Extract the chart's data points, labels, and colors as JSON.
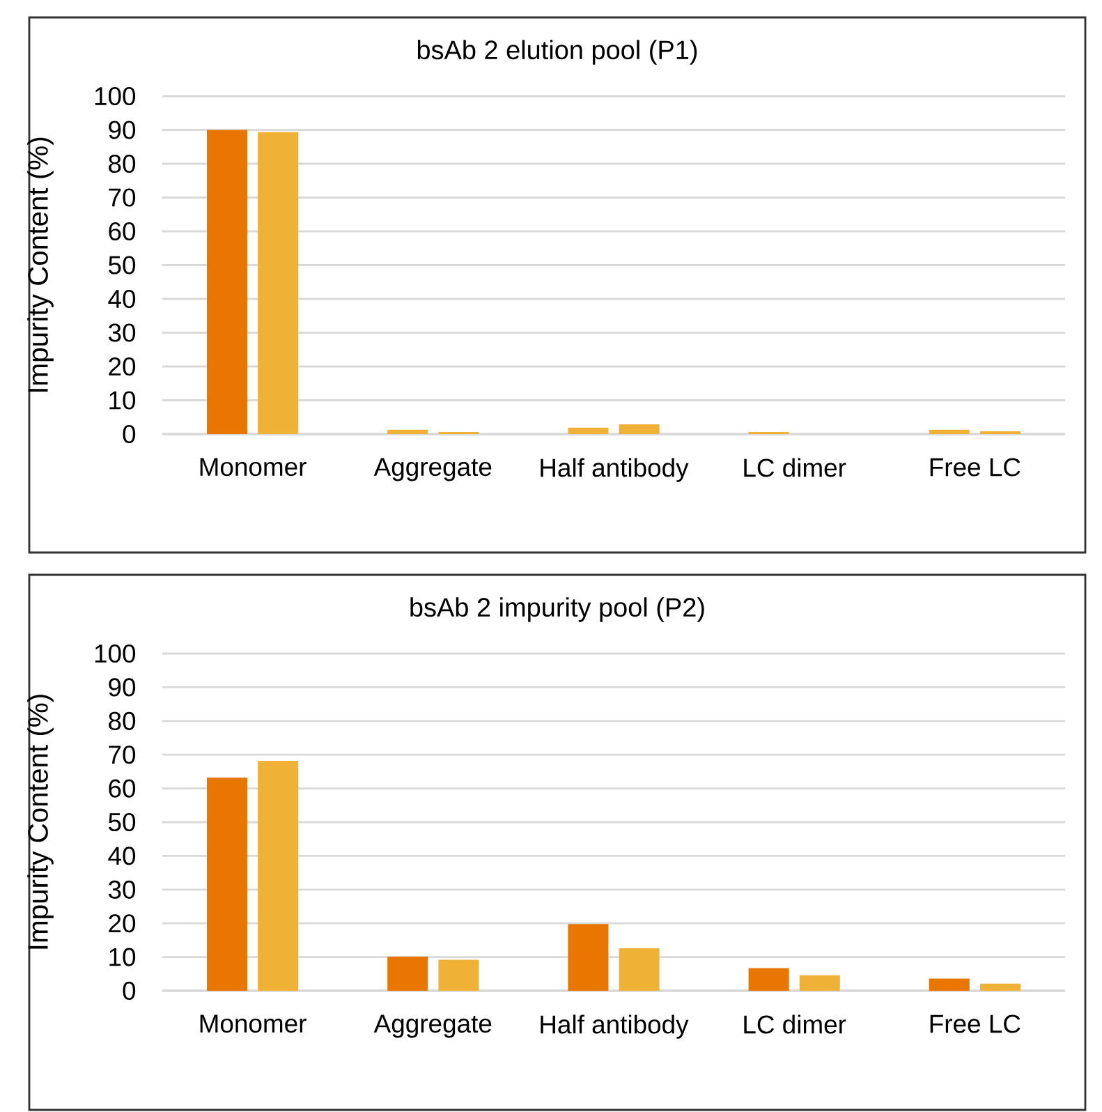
{
  "chart_data": [
    {
      "type": "bar",
      "title": "bsAb 2 elution pool (P1)",
      "ylabel": "Impurity Content (%)",
      "categories": [
        "Monomer",
        "Aggregate",
        "Half antibody",
        "LC dimer",
        "Free LC"
      ],
      "series": [
        {
          "colors": [
            "#e97600",
            "#efb236",
            "#efb236",
            "#efb236",
            "#efb236"
          ],
          "values": [
            90,
            1.3,
            1.9,
            0.6,
            1.3
          ]
        },
        {
          "color": "#efb236",
          "values": [
            89.4,
            0.6,
            2.9,
            0,
            0.8
          ]
        }
      ],
      "ylim": [
        0,
        100
      ],
      "yticks": [
        0,
        10,
        20,
        30,
        40,
        50,
        60,
        70,
        80,
        90,
        100
      ],
      "grid": "y"
    },
    {
      "type": "bar",
      "title": "bsAb 2 impurity pool (P2)",
      "ylabel": "Impurity Content (%)",
      "categories": [
        "Monomer",
        "Aggregate",
        "Half antibody",
        "LC dimer",
        "Free LC"
      ],
      "series": [
        {
          "color": "#e97600",
          "values": [
            63.2,
            10.1,
            19.8,
            6.7,
            3.6
          ]
        },
        {
          "color": "#efb236",
          "values": [
            68.2,
            9.2,
            12.6,
            4.6,
            2.1
          ]
        }
      ],
      "ylim": [
        0,
        100
      ],
      "yticks": [
        0,
        10,
        20,
        30,
        40,
        50,
        60,
        70,
        80,
        90,
        100
      ],
      "grid": "y"
    }
  ]
}
